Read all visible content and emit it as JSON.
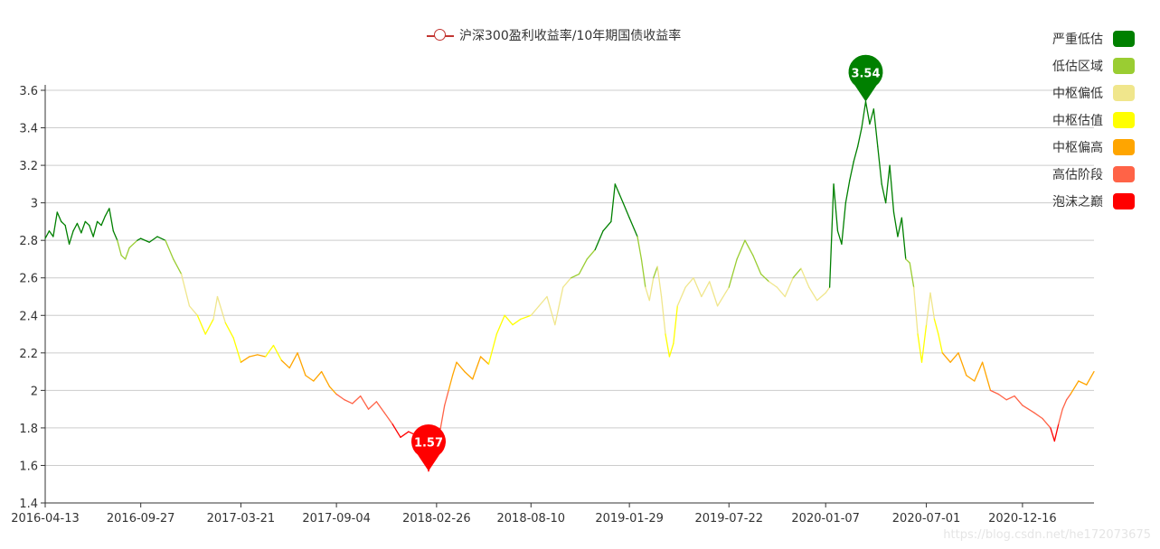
{
  "legend": {
    "series_name": "沪深300盈利收益率/10年期国债收益率",
    "series_color": "#c23531"
  },
  "visual_map": [
    {
      "label": "严重低估",
      "color": "#008000",
      "min": 2.8
    },
    {
      "label": "低估区域",
      "color": "#9acd32",
      "min": 2.6
    },
    {
      "label": "中枢偏低",
      "color": "#f0e68c",
      "min": 2.4
    },
    {
      "label": "中枢估值",
      "color": "#ffff00",
      "min": 2.2
    },
    {
      "label": "中枢偏高",
      "color": "#ffa500",
      "min": 2.0
    },
    {
      "label": "高估阶段",
      "color": "#ff6347",
      "min": 1.8
    },
    {
      "label": "泡沫之巅",
      "color": "#ff0000",
      "min": 0
    }
  ],
  "watermark": "https://blog.csdn.net/he172073675",
  "chart_data": {
    "type": "line",
    "title": "",
    "x_tick_labels": [
      "2016-04-13",
      "2016-09-27",
      "2017-03-21",
      "2017-09-04",
      "2018-02-26",
      "2018-08-10",
      "2019-01-29",
      "2019-07-22",
      "2020-01-07",
      "2020-07-01",
      "2020-12-16"
    ],
    "x_range": [
      "2016-04-13",
      "2021-04-20"
    ],
    "ylim": [
      1.4,
      3.6
    ],
    "y_ticks": [
      1.4,
      1.6,
      1.8,
      2,
      2.2,
      2.4,
      2.6,
      2.8,
      3,
      3.2,
      3.4,
      3.6
    ],
    "grid": true,
    "series": [
      {
        "name": "沪深300盈利收益率/10年期国债收益率",
        "points": [
          [
            "2016-04-13",
            2.81
          ],
          [
            "2016-04-20",
            2.85
          ],
          [
            "2016-04-27",
            2.82
          ],
          [
            "2016-05-04",
            2.95
          ],
          [
            "2016-05-11",
            2.9
          ],
          [
            "2016-05-18",
            2.88
          ],
          [
            "2016-05-25",
            2.78
          ],
          [
            "2016-06-01",
            2.85
          ],
          [
            "2016-06-08",
            2.89
          ],
          [
            "2016-06-15",
            2.84
          ],
          [
            "2016-06-22",
            2.9
          ],
          [
            "2016-06-29",
            2.88
          ],
          [
            "2016-07-06",
            2.82
          ],
          [
            "2016-07-13",
            2.9
          ],
          [
            "2016-07-20",
            2.88
          ],
          [
            "2016-07-27",
            2.93
          ],
          [
            "2016-08-03",
            2.97
          ],
          [
            "2016-08-10",
            2.85
          ],
          [
            "2016-08-17",
            2.8
          ],
          [
            "2016-08-24",
            2.72
          ],
          [
            "2016-08-31",
            2.7
          ],
          [
            "2016-09-07",
            2.76
          ],
          [
            "2016-09-14",
            2.78
          ],
          [
            "2016-09-21",
            2.8
          ],
          [
            "2016-09-27",
            2.81
          ],
          [
            "2016-10-12",
            2.79
          ],
          [
            "2016-10-26",
            2.82
          ],
          [
            "2016-11-09",
            2.8
          ],
          [
            "2016-11-23",
            2.7
          ],
          [
            "2016-12-07",
            2.62
          ],
          [
            "2016-12-21",
            2.45
          ],
          [
            "2017-01-04",
            2.4
          ],
          [
            "2017-01-18",
            2.3
          ],
          [
            "2017-02-01",
            2.38
          ],
          [
            "2017-02-08",
            2.5
          ],
          [
            "2017-02-22",
            2.36
          ],
          [
            "2017-03-08",
            2.28
          ],
          [
            "2017-03-21",
            2.15
          ],
          [
            "2017-04-05",
            2.18
          ],
          [
            "2017-04-19",
            2.19
          ],
          [
            "2017-05-03",
            2.18
          ],
          [
            "2017-05-17",
            2.24
          ],
          [
            "2017-05-31",
            2.16
          ],
          [
            "2017-06-14",
            2.12
          ],
          [
            "2017-06-28",
            2.2
          ],
          [
            "2017-07-12",
            2.08
          ],
          [
            "2017-07-26",
            2.05
          ],
          [
            "2017-08-09",
            2.1
          ],
          [
            "2017-08-23",
            2.02
          ],
          [
            "2017-09-04",
            1.98
          ],
          [
            "2017-09-18",
            1.95
          ],
          [
            "2017-10-02",
            1.93
          ],
          [
            "2017-10-16",
            1.97
          ],
          [
            "2017-10-30",
            1.9
          ],
          [
            "2017-11-13",
            1.94
          ],
          [
            "2017-11-27",
            1.88
          ],
          [
            "2017-12-11",
            1.82
          ],
          [
            "2017-12-25",
            1.75
          ],
          [
            "2018-01-08",
            1.78
          ],
          [
            "2018-01-22",
            1.76
          ],
          [
            "2018-02-05",
            1.8
          ],
          [
            "2018-02-12",
            1.57
          ],
          [
            "2018-02-19",
            1.65
          ],
          [
            "2018-02-26",
            1.76
          ],
          [
            "2018-03-05",
            1.8
          ],
          [
            "2018-03-12",
            1.92
          ],
          [
            "2018-03-19",
            2.0
          ],
          [
            "2018-03-26",
            2.08
          ],
          [
            "2018-04-02",
            2.15
          ],
          [
            "2018-04-16",
            2.1
          ],
          [
            "2018-04-30",
            2.06
          ],
          [
            "2018-05-14",
            2.18
          ],
          [
            "2018-05-28",
            2.14
          ],
          [
            "2018-06-11",
            2.3
          ],
          [
            "2018-06-25",
            2.4
          ],
          [
            "2018-07-09",
            2.35
          ],
          [
            "2018-07-23",
            2.38
          ],
          [
            "2018-08-10",
            2.4
          ],
          [
            "2018-08-24",
            2.45
          ],
          [
            "2018-09-07",
            2.5
          ],
          [
            "2018-09-21",
            2.35
          ],
          [
            "2018-10-05",
            2.55
          ],
          [
            "2018-10-19",
            2.6
          ],
          [
            "2018-11-02",
            2.62
          ],
          [
            "2018-11-16",
            2.7
          ],
          [
            "2018-11-30",
            2.75
          ],
          [
            "2018-12-14",
            2.85
          ],
          [
            "2018-12-28",
            2.9
          ],
          [
            "2019-01-04",
            3.1
          ],
          [
            "2019-01-11",
            3.05
          ],
          [
            "2019-01-18",
            3.0
          ],
          [
            "2019-01-29",
            2.92
          ],
          [
            "2019-02-12",
            2.82
          ],
          [
            "2019-02-19",
            2.7
          ],
          [
            "2019-02-26",
            2.55
          ],
          [
            "2019-03-05",
            2.48
          ],
          [
            "2019-03-12",
            2.6
          ],
          [
            "2019-03-19",
            2.66
          ],
          [
            "2019-03-26",
            2.5
          ],
          [
            "2019-04-02",
            2.3
          ],
          [
            "2019-04-09",
            2.18
          ],
          [
            "2019-04-16",
            2.25
          ],
          [
            "2019-04-23",
            2.45
          ],
          [
            "2019-05-07",
            2.55
          ],
          [
            "2019-05-21",
            2.6
          ],
          [
            "2019-06-04",
            2.5
          ],
          [
            "2019-06-18",
            2.58
          ],
          [
            "2019-07-02",
            2.45
          ],
          [
            "2019-07-16",
            2.52
          ],
          [
            "2019-07-22",
            2.55
          ],
          [
            "2019-08-05",
            2.7
          ],
          [
            "2019-08-19",
            2.8
          ],
          [
            "2019-09-02",
            2.72
          ],
          [
            "2019-09-16",
            2.62
          ],
          [
            "2019-09-30",
            2.58
          ],
          [
            "2019-10-14",
            2.55
          ],
          [
            "2019-10-28",
            2.5
          ],
          [
            "2019-11-11",
            2.6
          ],
          [
            "2019-11-25",
            2.65
          ],
          [
            "2019-12-09",
            2.55
          ],
          [
            "2019-12-23",
            2.48
          ],
          [
            "2020-01-07",
            2.52
          ],
          [
            "2020-01-14",
            2.55
          ],
          [
            "2020-01-21",
            3.1
          ],
          [
            "2020-01-28",
            2.85
          ],
          [
            "2020-02-04",
            2.78
          ],
          [
            "2020-02-11",
            3.0
          ],
          [
            "2020-02-18",
            3.12
          ],
          [
            "2020-02-25",
            3.22
          ],
          [
            "2020-03-03",
            3.3
          ],
          [
            "2020-03-10",
            3.4
          ],
          [
            "2020-03-17",
            3.54
          ],
          [
            "2020-03-24",
            3.42
          ],
          [
            "2020-03-31",
            3.5
          ],
          [
            "2020-04-07",
            3.3
          ],
          [
            "2020-04-14",
            3.1
          ],
          [
            "2020-04-21",
            3.0
          ],
          [
            "2020-04-28",
            3.2
          ],
          [
            "2020-05-05",
            2.95
          ],
          [
            "2020-05-12",
            2.82
          ],
          [
            "2020-05-19",
            2.92
          ],
          [
            "2020-05-26",
            2.7
          ],
          [
            "2020-06-02",
            2.68
          ],
          [
            "2020-06-09",
            2.55
          ],
          [
            "2020-06-16",
            2.3
          ],
          [
            "2020-06-23",
            2.15
          ],
          [
            "2020-07-01",
            2.35
          ],
          [
            "2020-07-08",
            2.52
          ],
          [
            "2020-07-15",
            2.38
          ],
          [
            "2020-07-22",
            2.3
          ],
          [
            "2020-07-29",
            2.2
          ],
          [
            "2020-08-12",
            2.15
          ],
          [
            "2020-08-26",
            2.2
          ],
          [
            "2020-09-09",
            2.08
          ],
          [
            "2020-09-23",
            2.05
          ],
          [
            "2020-10-07",
            2.15
          ],
          [
            "2020-10-21",
            2.0
          ],
          [
            "2020-11-04",
            1.98
          ],
          [
            "2020-11-18",
            1.95
          ],
          [
            "2020-12-02",
            1.97
          ],
          [
            "2020-12-16",
            1.92
          ],
          [
            "2021-01-06",
            1.88
          ],
          [
            "2021-01-20",
            1.85
          ],
          [
            "2021-02-03",
            1.8
          ],
          [
            "2021-02-10",
            1.73
          ],
          [
            "2021-02-17",
            1.82
          ],
          [
            "2021-02-24",
            1.9
          ],
          [
            "2021-03-03",
            1.95
          ],
          [
            "2021-03-10",
            1.98
          ],
          [
            "2021-03-24",
            2.05
          ],
          [
            "2021-04-07",
            2.03
          ],
          [
            "2021-04-20",
            2.1
          ]
        ]
      }
    ],
    "mark_points": [
      {
        "label": "3.54",
        "date": "2020-03-17",
        "value": 3.54,
        "color": "#008000"
      },
      {
        "label": "1.57",
        "date": "2018-02-12",
        "value": 1.57,
        "color": "#ff0000"
      }
    ]
  }
}
